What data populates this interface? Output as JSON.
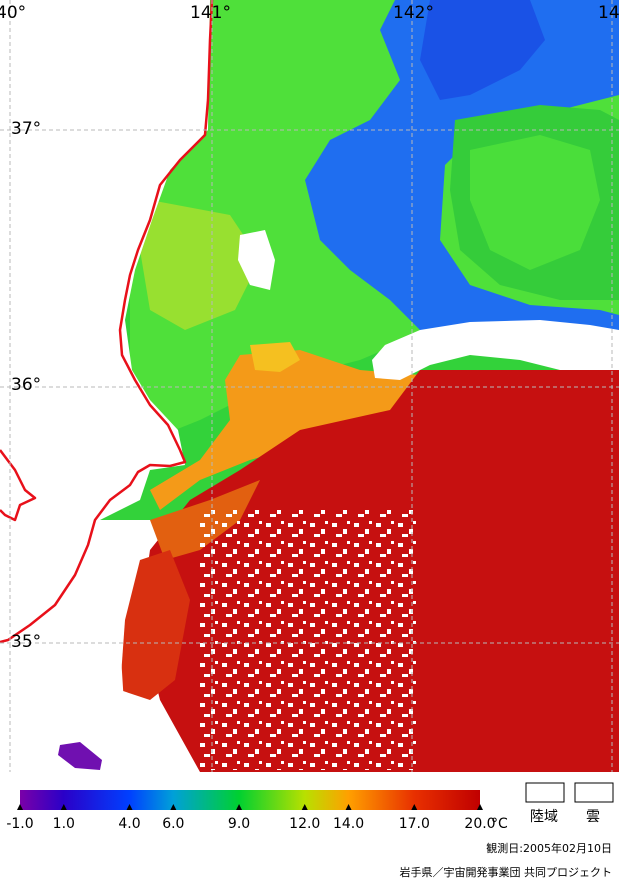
{
  "map": {
    "longitude_labels": [
      "40°",
      "141°",
      "142°",
      "14"
    ],
    "latitude_labels": [
      "37°",
      "36°",
      "35°"
    ],
    "colors": {
      "land": "#ffffff",
      "coastline": "#e8101a",
      "grid": "#b8b8b8"
    }
  },
  "colorbar": {
    "tick_labels": [
      "-1.0",
      "1.0",
      "4.0",
      "6.0",
      "9.0",
      "12.0",
      "14.0",
      "17.0",
      "20.0"
    ],
    "unit": "°C",
    "range": [
      -1.0,
      20.0
    ],
    "stops": [
      {
        "value": -1.0,
        "color": "#7a00a8"
      },
      {
        "value": 1.0,
        "color": "#2a00c8"
      },
      {
        "value": 4.0,
        "color": "#0040ff"
      },
      {
        "value": 6.0,
        "color": "#00a0d8"
      },
      {
        "value": 9.0,
        "color": "#00d030"
      },
      {
        "value": 12.0,
        "color": "#b8e000"
      },
      {
        "value": 14.0,
        "color": "#ffa000"
      },
      {
        "value": 17.0,
        "color": "#e83000"
      },
      {
        "value": 20.0,
        "color": "#c00000"
      }
    ]
  },
  "legend": {
    "land_label": "陸域",
    "cloud_label": "雲"
  },
  "observation_date": "観測日:2005年02月10日",
  "credit": "岩手県／宇宙開発事業団 共同プロジェクト"
}
